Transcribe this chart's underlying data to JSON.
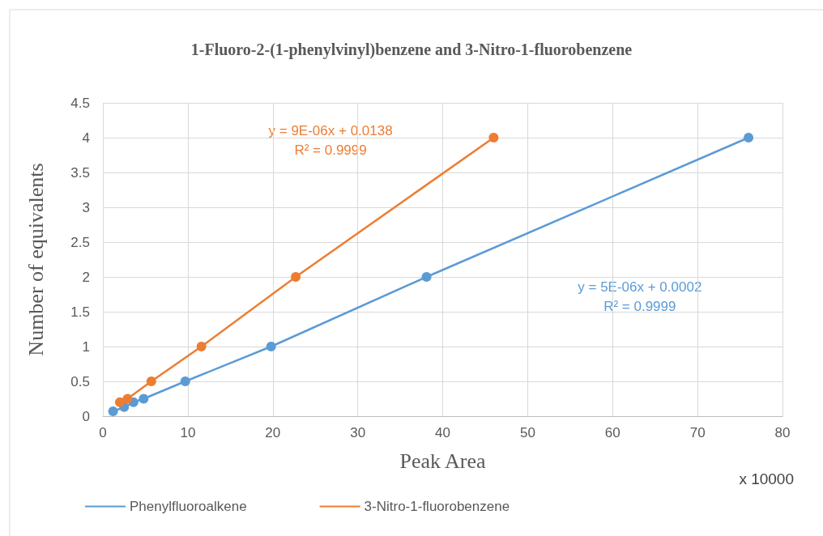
{
  "chart_data": {
    "type": "line",
    "title": "1-Fluoro-2-(1-phenylvinyl)benzene and 3-Nitro-1-fluorobenzene",
    "xlabel": "Peak Area",
    "ylabel": "Number of equivalents",
    "series": [
      {
        "name": "Phenylfluoroalkene",
        "color": "#5b9bd5",
        "x": [
          1.2,
          2.5,
          3.6,
          4.8,
          9.7,
          19.8,
          38.1,
          76
        ],
        "values": [
          0.07,
          0.13,
          0.2,
          0.25,
          0.5,
          1,
          2,
          4
        ]
      },
      {
        "name": "3-Nitro-1-fluorobenzene",
        "color": "#ed7d31",
        "x": [
          2.0,
          2.9,
          5.7,
          11.6,
          22.7,
          46
        ],
        "values": [
          0.2,
          0.25,
          0.5,
          1,
          2,
          4
        ]
      }
    ],
    "annotations": [
      "y = 9E-06x + 0.0138\nR² = 0.9999",
      "y = 5E-06x + 0.0002\nR² = 0.9999",
      "x 10000"
    ],
    "xlim": [
      0,
      80
    ],
    "xticks": [
      0,
      10,
      20,
      30,
      40,
      50,
      60,
      70,
      80
    ],
    "ylim": [
      0,
      4.5
    ],
    "yticks": [
      0,
      0.5,
      1,
      1.5,
      2,
      2.5,
      3,
      3.5,
      4,
      4.5
    ],
    "grid": true,
    "legend": "bottom",
    "marker": "circle",
    "line_style": "solid"
  }
}
